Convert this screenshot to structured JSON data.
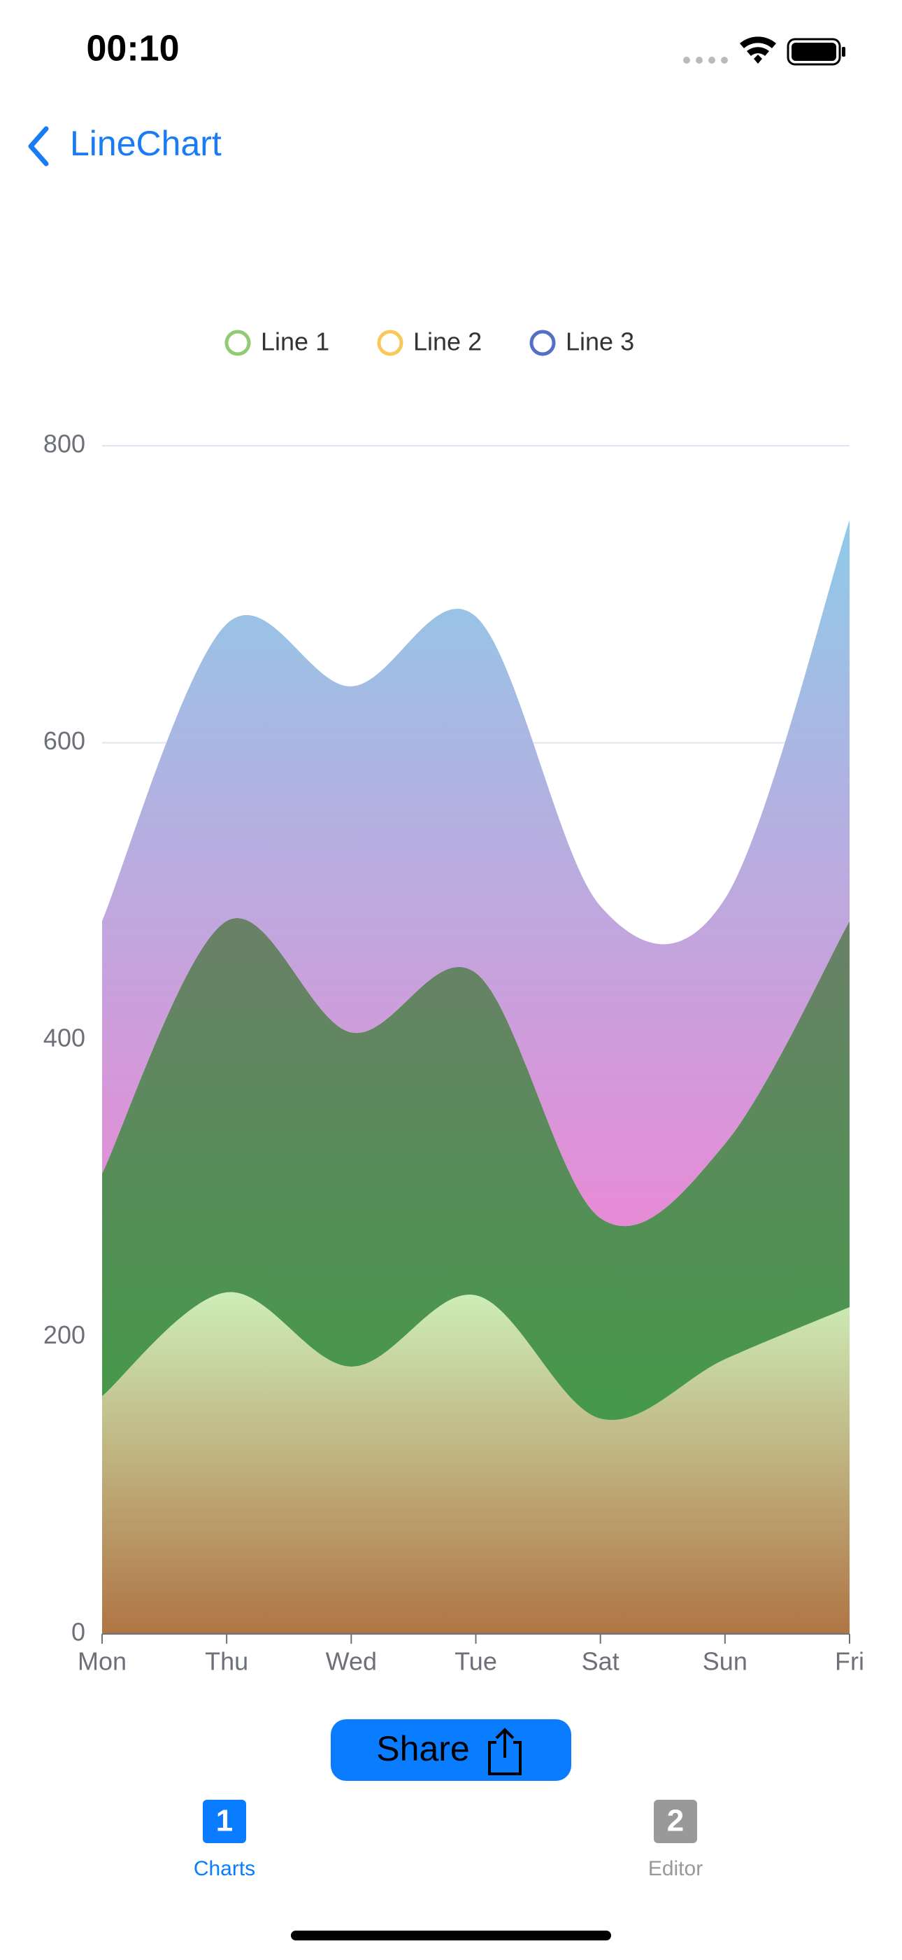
{
  "status_bar": {
    "time": "00:10"
  },
  "nav": {
    "title": "LineChart"
  },
  "chart_data": {
    "type": "stacked-area",
    "categories": [
      "Mon",
      "Thu",
      "Wed",
      "Tue",
      "Sat",
      "Sun",
      "Fri"
    ],
    "series": [
      {
        "name": "Line 1",
        "color": "#91cc75",
        "gradient": [
          "#cdeeb8",
          "#b07444"
        ],
        "values": [
          160,
          230,
          180,
          228,
          145,
          185,
          220
        ]
      },
      {
        "name": "Line 2",
        "color": "#fac858",
        "gradient": [
          "#6a8068",
          "#45994a"
        ],
        "values": [
          150,
          250,
          225,
          217,
          135,
          145,
          260
        ]
      },
      {
        "name": "Line 3",
        "color": "#5470c6",
        "gradient": [
          "#8ecbe8",
          "#e78bd6"
        ],
        "values": [
          170,
          200,
          233,
          240,
          210,
          165,
          270
        ]
      }
    ],
    "ylim": [
      0,
      800
    ],
    "yticks": [
      0,
      200,
      400,
      600,
      800
    ],
    "grid": true,
    "legend": "top"
  },
  "share": {
    "label": "Share"
  },
  "tabs": [
    {
      "badge": "1",
      "label": "Charts"
    },
    {
      "badge": "2",
      "label": "Editor"
    }
  ]
}
